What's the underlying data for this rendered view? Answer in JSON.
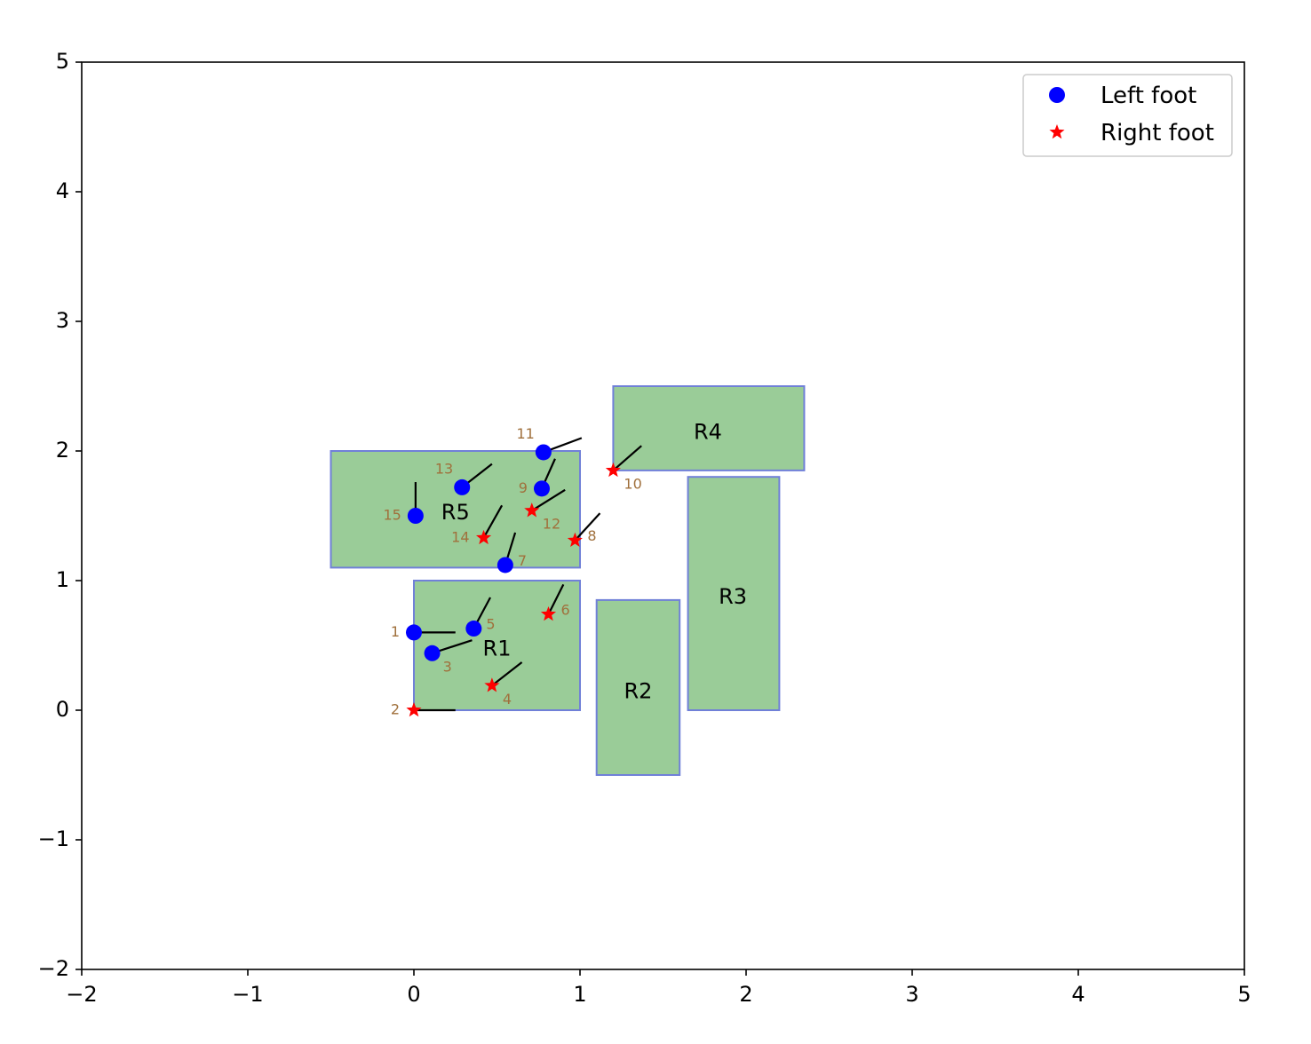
{
  "chart_data": {
    "type": "scatter",
    "title": "",
    "xlabel": "",
    "ylabel": "",
    "xlim": [
      -2,
      5
    ],
    "ylim": [
      -2,
      5
    ],
    "xticks": [
      -2,
      -1,
      0,
      1,
      2,
      3,
      4,
      5
    ],
    "yticks": [
      -2,
      -1,
      0,
      1,
      2,
      3,
      4,
      5
    ],
    "xtick_labels": [
      "−2",
      "−1",
      "0",
      "1",
      "2",
      "3",
      "4",
      "5"
    ],
    "ytick_labels": [
      "−2",
      "−1",
      "0",
      "1",
      "2",
      "3",
      "4",
      "5"
    ],
    "grid": false,
    "legend_position": "top-right",
    "colors": {
      "left_foot": "#0000ff",
      "right_foot": "#ff0000",
      "region_fill": "#9acc98",
      "region_edge": "#7080d8",
      "step_label": "#a0703c",
      "heading_line": "#000000"
    },
    "series": [
      {
        "name": "Left foot",
        "marker": "circle",
        "color": "#0000ff"
      },
      {
        "name": "Right foot",
        "marker": "star",
        "color": "#ff0000"
      }
    ],
    "regions": [
      {
        "label": "R1",
        "x0": 0.0,
        "y0": 0.0,
        "x1": 1.0,
        "y1": 1.0,
        "label_x": 0.5,
        "label_y": 0.47
      },
      {
        "label": "R2",
        "x0": 1.1,
        "y0": -0.5,
        "x1": 1.6,
        "y1": 0.85,
        "label_x": 1.35,
        "label_y": 0.14
      },
      {
        "label": "R3",
        "x0": 1.65,
        "y0": 0.0,
        "x1": 2.2,
        "y1": 1.8,
        "label_x": 1.92,
        "label_y": 0.87
      },
      {
        "label": "R4",
        "x0": 1.2,
        "y0": 1.85,
        "x1": 2.35,
        "y1": 2.5,
        "label_x": 1.77,
        "label_y": 2.14
      },
      {
        "label": "R5",
        "x0": -0.5,
        "y0": 1.1,
        "x1": 1.0,
        "y1": 2.0,
        "label_x": 0.25,
        "label_y": 1.52
      }
    ],
    "steps": [
      {
        "id": "1",
        "foot": "Left foot",
        "x": 0.0,
        "y": 0.6,
        "hx": 0.25,
        "hy": 0.6,
        "lpos": "left"
      },
      {
        "id": "2",
        "foot": "Right foot",
        "x": 0.0,
        "y": 0.0,
        "hx": 0.25,
        "hy": 0.0,
        "lpos": "left"
      },
      {
        "id": "3",
        "foot": "Left foot",
        "x": 0.11,
        "y": 0.44,
        "hx": 0.35,
        "hy": 0.54,
        "lpos": "below"
      },
      {
        "id": "4",
        "foot": "Right foot",
        "x": 0.47,
        "y": 0.19,
        "hx": 0.65,
        "hy": 0.37,
        "lpos": "below"
      },
      {
        "id": "5",
        "foot": "Left foot",
        "x": 0.36,
        "y": 0.63,
        "hx": 0.46,
        "hy": 0.87,
        "lpos": "right"
      },
      {
        "id": "6",
        "foot": "Right foot",
        "x": 0.81,
        "y": 0.74,
        "hx": 0.9,
        "hy": 0.97,
        "lpos": "right"
      },
      {
        "id": "7",
        "foot": "Left foot",
        "x": 0.55,
        "y": 1.12,
        "hx": 0.61,
        "hy": 1.37,
        "lpos": "right"
      },
      {
        "id": "8",
        "foot": "Right foot",
        "x": 0.97,
        "y": 1.31,
        "hx": 1.12,
        "hy": 1.52,
        "lpos": "right"
      },
      {
        "id": "9",
        "foot": "Left foot",
        "x": 0.77,
        "y": 1.71,
        "hx": 0.85,
        "hy": 1.94,
        "lpos": "left"
      },
      {
        "id": "10",
        "foot": "Right foot",
        "x": 1.2,
        "y": 1.85,
        "hx": 1.37,
        "hy": 2.04,
        "lpos": "below"
      },
      {
        "id": "11",
        "foot": "Left foot",
        "x": 0.78,
        "y": 1.99,
        "hx": 1.01,
        "hy": 2.1,
        "lpos": "above-left"
      },
      {
        "id": "12",
        "foot": "Right foot",
        "x": 0.71,
        "y": 1.54,
        "hx": 0.91,
        "hy": 1.7,
        "lpos": "below"
      },
      {
        "id": "13",
        "foot": "Left foot",
        "x": 0.29,
        "y": 1.72,
        "hx": 0.47,
        "hy": 1.9,
        "lpos": "above-left"
      },
      {
        "id": "14",
        "foot": "Right foot",
        "x": 0.42,
        "y": 1.33,
        "hx": 0.53,
        "hy": 1.58,
        "lpos": "left"
      },
      {
        "id": "15",
        "foot": "Left foot",
        "x": 0.01,
        "y": 1.5,
        "hx": 0.01,
        "hy": 1.76,
        "lpos": "left"
      }
    ]
  }
}
